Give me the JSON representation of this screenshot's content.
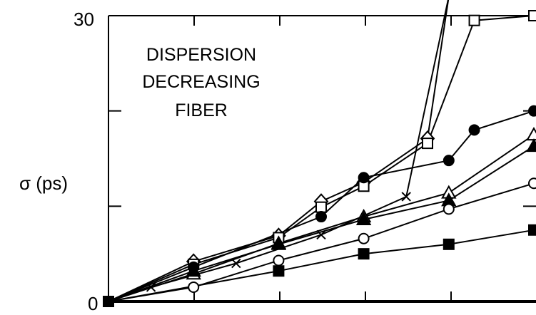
{
  "chart_data": {
    "type": "line",
    "annotation": [
      "DISPERSION",
      "DECREASING",
      "FIBER"
    ],
    "ylabel": "σ (ps)",
    "xlabel": "",
    "y_ticks": [
      "0",
      "30"
    ],
    "x_ticks": [],
    "xlim": [
      0,
      5.0
    ],
    "ylim": [
      0,
      30
    ],
    "grid": false,
    "series": [
      {
        "marker": "diamond-open",
        "x": [
          0,
          1,
          2,
          2.5,
          3,
          3.75,
          4.0
        ],
        "y": [
          0,
          4.2,
          6.9,
          10.5,
          12.5,
          17.1,
          32
        ]
      },
      {
        "marker": "square-open",
        "x": [
          0,
          1,
          2,
          2.5,
          3,
          3.75,
          4.3,
          5.0
        ],
        "y": [
          0,
          3.9,
          6.7,
          9.9,
          12.1,
          16.6,
          29.5,
          30
        ]
      },
      {
        "marker": "circle-filled",
        "x": [
          0,
          1,
          2.5,
          3,
          4,
          4.3,
          5.0
        ],
        "y": [
          0,
          3.6,
          8.9,
          13.0,
          14.8,
          18.0,
          20.0
        ]
      },
      {
        "marker": "triangle-open",
        "x": [
          0,
          1,
          2,
          3,
          4,
          5.0
        ],
        "y": [
          0,
          2.9,
          6.1,
          8.9,
          11.4,
          17.5
        ]
      },
      {
        "marker": "triangle-filled",
        "x": [
          0,
          1,
          2,
          3,
          4,
          5.0
        ],
        "y": [
          0,
          3.2,
          6.0,
          8.6,
          10.6,
          16.3
        ]
      },
      {
        "marker": "x",
        "x": [
          0,
          0.5,
          1.5,
          2.5,
          3.5,
          4.0
        ],
        "y": [
          0,
          1.5,
          4.0,
          7.0,
          11.0,
          32
        ]
      },
      {
        "marker": "circle-open",
        "x": [
          0,
          1,
          2,
          3,
          4,
          5.0
        ],
        "y": [
          0,
          1.5,
          4.3,
          6.6,
          9.7,
          12.4
        ]
      },
      {
        "marker": "square-filled",
        "x": [
          0,
          2,
          3,
          4,
          5.0
        ],
        "y": [
          0,
          3.2,
          5.0,
          6.0,
          7.5
        ]
      }
    ]
  }
}
